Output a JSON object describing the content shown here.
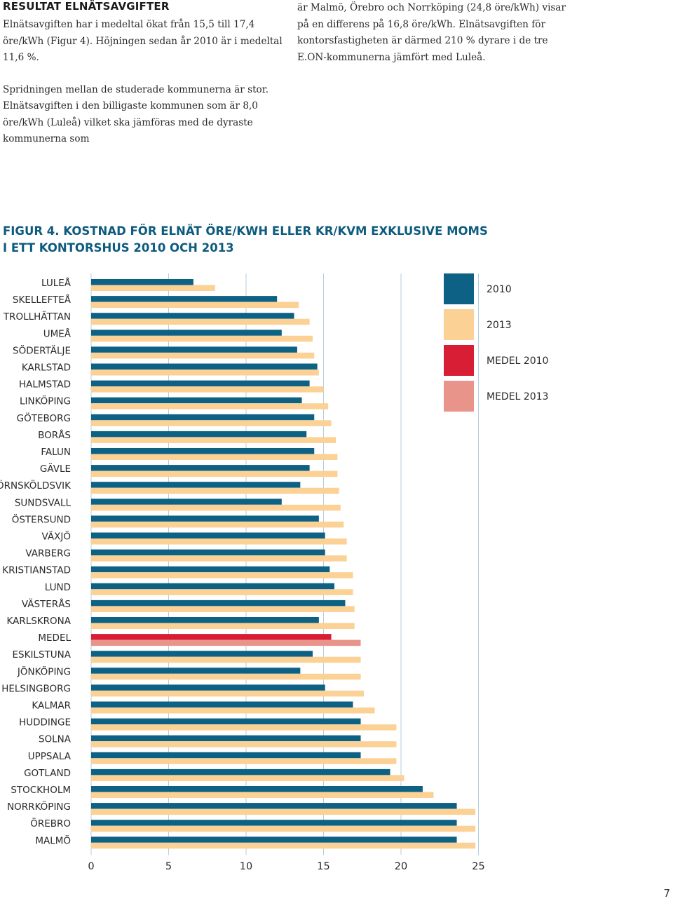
{
  "heading": "RESULTAT ELNÄTSAVGIFTER",
  "intro": {
    "left_p1": "Elnätsavgiften har i medeltal ökat från 15,5 till 17,4 öre/kWh (Figur 4). Höjningen sedan år 2010 är i medeltal 11,6 %.",
    "left_p2": "Spridningen mellan de studerade kommunerna är stor. Elnätsavgiften i den billigaste kommunen som är 8,0 öre/kWh (Luleå) vilket ska jämföras med de dyraste kommunerna som",
    "right_p1": "är Malmö, Örebro och Norrköping (24,8 öre/kWh) visar på en differens på 16,8 öre/kWh. Elnätsavgiften för kontorsfastigheten är därmed 210 % dyrare i de tre E.ON-kommunerna jämfört med Luleå."
  },
  "figure": {
    "title_line1": "FIGUR 4. KOSTNAD FÖR ELNÄT ÖRE/KWH ELLER KR/KVM EXKLUSIVE MOMS",
    "title_line2": "I ETT KONTORSHUS 2010 OCH 2013"
  },
  "colors": {
    "y2010": "#0d6184",
    "y2013": "#fbd195",
    "medel2010": "#d81e35",
    "medel2013": "#e8948a",
    "grid": "#b3cfdd",
    "label": "#2a2a2a"
  },
  "chart_data": {
    "type": "bar",
    "orientation": "horizontal",
    "title": "Kostnad för elnät öre/kWh eller kr/kvm exklusive moms i ett kontorshus 2010 och 2013",
    "xlabel": "",
    "ylabel": "",
    "xlim": [
      0,
      25
    ],
    "xticks": [
      0,
      5,
      10,
      15,
      20,
      25
    ],
    "grid": true,
    "legend_position": "top-right",
    "legend": [
      "2010",
      "2013",
      "MEDEL 2010",
      "MEDEL 2013"
    ],
    "categories": [
      "LULEÅ",
      "SKELLEFTEÅ",
      "TROLLHÄTTAN",
      "UMEÅ",
      "SÖDERTÄLJE",
      "KARLSTAD",
      "HALMSTAD",
      "LINKÖPING",
      "GÖTEBORG",
      "BORÅS",
      "FALUN",
      "GÄVLE",
      "ÖRNSKÖLDSVIK",
      "SUNDSVALL",
      "ÖSTERSUND",
      "VÄXJÖ",
      "VARBERG",
      "KRISTIANSTAD",
      "LUND",
      "VÄSTERÅS",
      "KARLSKRONA",
      "MEDEL",
      "ESKILSTUNA",
      "JÖNKÖPING",
      "HELSINGBORG",
      "KALMAR",
      "HUDDINGE",
      "SOLNA",
      "UPPSALA",
      "GOTLAND",
      "STOCKHOLM",
      "NORRKÖPING",
      "ÖREBRO",
      "MALMÖ"
    ],
    "series": [
      {
        "name": "2010",
        "values": [
          6.6,
          12.0,
          13.1,
          12.3,
          13.3,
          14.6,
          14.1,
          13.6,
          14.4,
          13.9,
          14.4,
          14.1,
          13.5,
          12.3,
          14.7,
          15.1,
          15.1,
          15.4,
          15.7,
          16.4,
          14.7,
          15.5,
          14.3,
          13.5,
          15.1,
          16.9,
          17.4,
          17.4,
          17.4,
          19.3,
          21.4,
          23.6,
          23.6,
          23.6
        ]
      },
      {
        "name": "2013",
        "values": [
          8.0,
          13.4,
          14.1,
          14.3,
          14.4,
          14.7,
          15.0,
          15.3,
          15.5,
          15.8,
          15.9,
          15.9,
          16.0,
          16.1,
          16.3,
          16.5,
          16.5,
          16.9,
          16.9,
          17.0,
          17.0,
          17.4,
          17.4,
          17.4,
          17.6,
          18.3,
          19.7,
          19.7,
          19.7,
          20.2,
          22.1,
          24.8,
          24.8,
          24.8
        ]
      }
    ]
  },
  "page_number": "7"
}
